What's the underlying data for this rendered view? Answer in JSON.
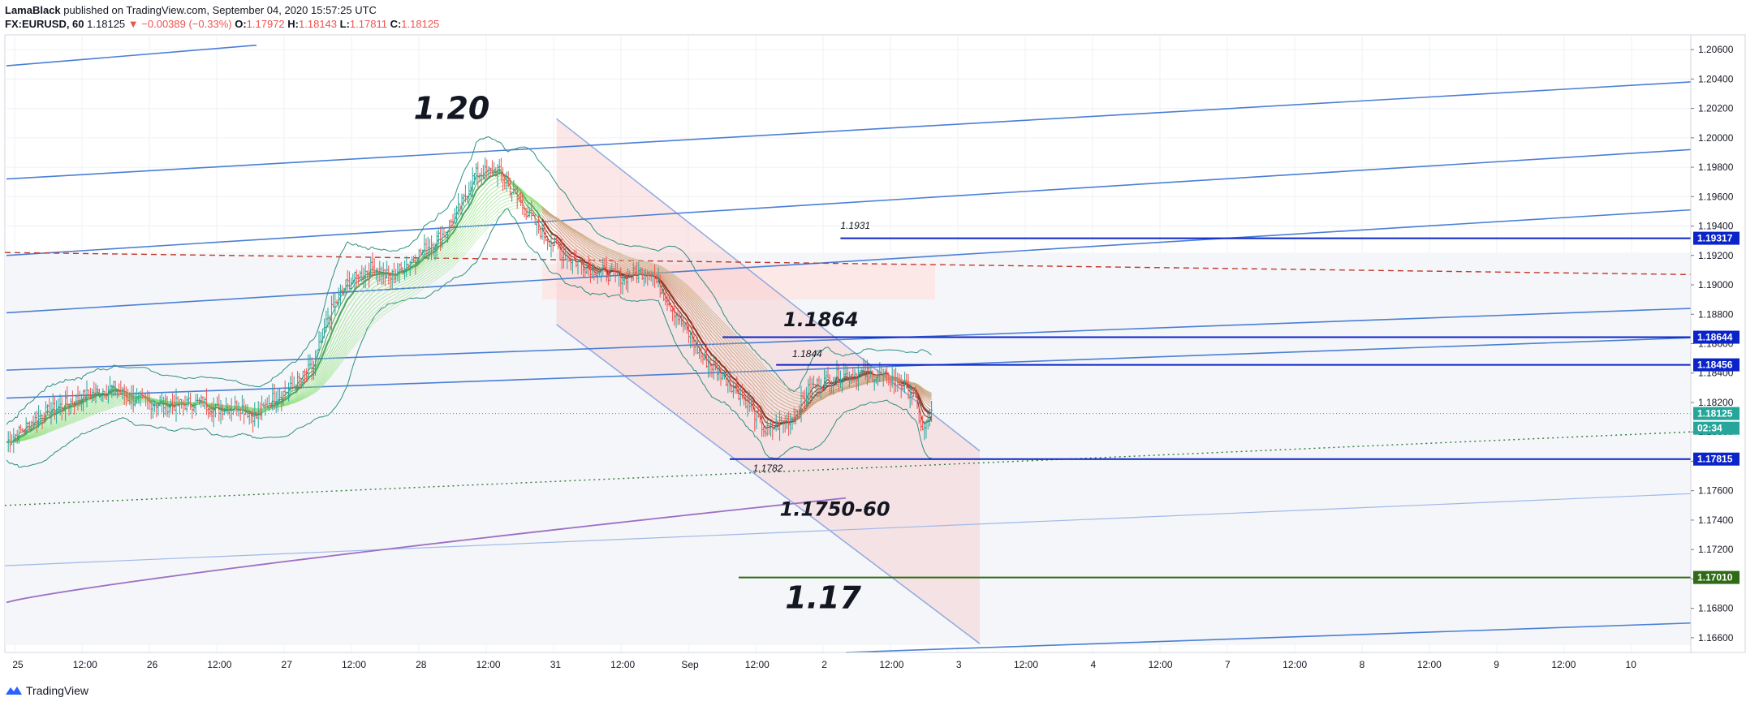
{
  "header": {
    "author": "LamaBlack",
    "published": " published on TradingView.com, September 04, 2020 15:57:25 UTC",
    "symbol": "FX:EURUSD, 60",
    "last": "1.18125",
    "change": "−0.00389 (−0.33%)",
    "o_label": "O:",
    "o_value": "1.17972",
    "h_label": "H:",
    "h_value": "1.18143",
    "l_label": "L:",
    "l_value": "1.17811",
    "c_label": "C:",
    "c_value": "1.18125"
  },
  "footer": {
    "brand": "TradingView"
  },
  "colors": {
    "bull": "#26a69a",
    "bear": "#ef5350",
    "trend": "#4a7fd4",
    "level": "#0b24c9",
    "support_green": "#2e6b14",
    "purple": "#9c6fc4",
    "channel": "#f7c9c9",
    "current": "#26a69a"
  },
  "chart_data": {
    "type": "candlestick",
    "x_tick_labels": [
      "25",
      "12:00",
      "26",
      "12:00",
      "27",
      "12:00",
      "28",
      "12:00",
      "31",
      "12:00",
      "Sep",
      "12:00",
      "2",
      "12:00",
      "3",
      "12:00",
      "4",
      "12:00",
      "7",
      "12:00",
      "8",
      "12:00",
      "9",
      "12:00",
      "10"
    ],
    "y_tick_labels": [
      "1.20600",
      "1.20400",
      "1.20200",
      "1.20000",
      "1.19800",
      "1.19600",
      "1.19400",
      "1.19200",
      "1.19000",
      "1.18800",
      "1.18600",
      "1.18400",
      "1.18200",
      "1.18000",
      "1.17800",
      "1.17600",
      "1.17400",
      "1.17200",
      "1.17000",
      "1.16800",
      "1.16600"
    ],
    "ylim": [
      1.165,
      1.207
    ],
    "price_path": [
      [
        0,
        1.1793
      ],
      [
        20,
        1.1812
      ],
      [
        45,
        1.1825
      ],
      [
        60,
        1.183
      ],
      [
        70,
        1.1822
      ],
      [
        90,
        1.1818
      ],
      [
        110,
        1.182
      ],
      [
        115,
        1.1815
      ],
      [
        130,
        1.1818
      ],
      [
        140,
        1.181
      ],
      [
        148,
        1.1822
      ],
      [
        160,
        1.183
      ],
      [
        172,
        1.1845
      ],
      [
        180,
        1.1878
      ],
      [
        190,
        1.19
      ],
      [
        205,
        1.1912
      ],
      [
        215,
        1.1905
      ],
      [
        230,
        1.192
      ],
      [
        245,
        1.1935
      ],
      [
        255,
        1.1955
      ],
      [
        262,
        1.1975
      ],
      [
        275,
        1.1978
      ],
      [
        285,
        1.196
      ],
      [
        300,
        1.1935
      ],
      [
        315,
        1.1918
      ],
      [
        330,
        1.191
      ],
      [
        345,
        1.1905
      ],
      [
        360,
        1.191
      ],
      [
        375,
        1.188
      ],
      [
        390,
        1.185
      ],
      [
        400,
        1.184
      ],
      [
        415,
        1.182
      ],
      [
        425,
        1.18
      ],
      [
        440,
        1.181
      ],
      [
        450,
        1.183
      ],
      [
        465,
        1.1838
      ],
      [
        480,
        1.184
      ],
      [
        490,
        1.1838
      ],
      [
        500,
        1.1833
      ],
      [
        508,
        1.1825
      ],
      [
        513,
        1.18
      ],
      [
        518,
        1.1812
      ]
    ],
    "annotations": [
      {
        "text": "1.20",
        "size": "big",
        "price": 1.2013,
        "bar": 228
      },
      {
        "text": "1.1864",
        "size": "big",
        "price": 1.1872,
        "bar": 435
      },
      {
        "text": "1.1750-60",
        "size": "big",
        "price": 1.1743,
        "bar": 433
      },
      {
        "text": "1.17",
        "size": "big",
        "price": 1.168,
        "bar": 436
      },
      {
        "text": "1.1931",
        "size": "small",
        "price": 1.1938,
        "bar": 467
      },
      {
        "text": "1.1844",
        "size": "small",
        "price": 1.1851,
        "bar": 440
      },
      {
        "text": "1.1782",
        "size": "small",
        "price": 1.1773,
        "bar": 418
      }
    ],
    "price_tags": [
      {
        "text": "1.19317",
        "price": 1.19317,
        "color": "#0b24c9"
      },
      {
        "text": "1.18644",
        "price": 1.18644,
        "color": "#0b24c9"
      },
      {
        "text": "1.18456",
        "price": 1.18456,
        "color": "#0b24c9"
      },
      {
        "text": "1.18125",
        "price": 1.18125,
        "color": "#26a69a"
      },
      {
        "text": "02:34",
        "price": 1.18025,
        "color": "#26a69a"
      },
      {
        "text": "1.17815",
        "price": 1.17815,
        "color": "#0b24c9"
      },
      {
        "text": "1.17010",
        "price": 1.1701,
        "color": "#2e6b14"
      }
    ]
  }
}
